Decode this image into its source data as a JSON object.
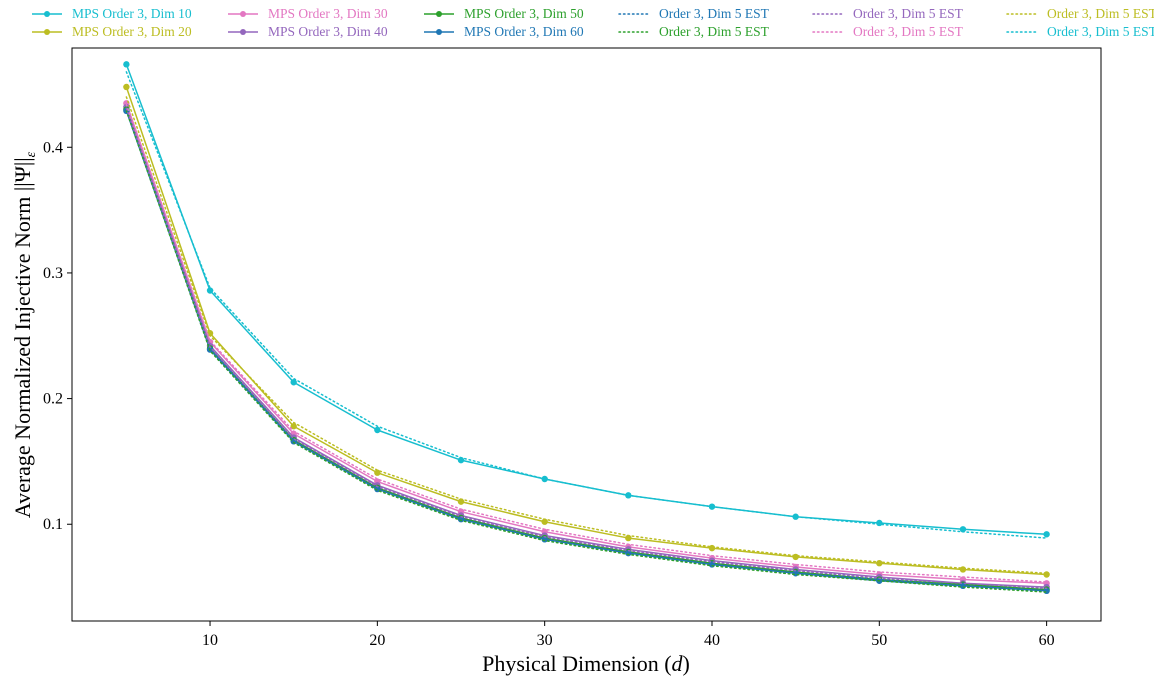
{
  "chart_data": {
    "type": "line",
    "xlabel_parts": [
      "Physical Dimension (",
      "d",
      ")"
    ],
    "ylabel": "Average Normalized Injective Norm ||Ψ||",
    "ylabel_sub": "ε",
    "x": [
      5,
      10,
      15,
      20,
      25,
      30,
      35,
      40,
      45,
      50,
      55,
      60
    ],
    "xlim": [
      1.75,
      63.25
    ],
    "ylim": [
      0.023,
      0.479
    ],
    "xticks": [
      10,
      20,
      30,
      40,
      50,
      60
    ],
    "yticks": [
      0.1,
      0.2,
      0.3,
      0.4
    ],
    "ytick_labels": [
      "0.1",
      "0.2",
      "0.3",
      "0.4"
    ],
    "grid": false,
    "legend_position": "top",
    "series": [
      {
        "name": "MPS Order 3, Dim 10",
        "color": "#17becf",
        "style": "solid",
        "marker": true,
        "values": [
          0.466,
          0.286,
          0.213,
          0.175,
          0.151,
          0.136,
          0.123,
          0.114,
          0.106,
          0.101,
          0.096,
          0.092
        ]
      },
      {
        "name": "MPS Order 3, Dim 20",
        "color": "#bcbd22",
        "style": "solid",
        "marker": true,
        "values": [
          0.448,
          0.252,
          0.178,
          0.141,
          0.118,
          0.102,
          0.089,
          0.081,
          0.074,
          0.069,
          0.064,
          0.06
        ]
      },
      {
        "name": "MPS Order 3, Dim 30",
        "color": "#e377c2",
        "style": "solid",
        "marker": true,
        "values": [
          0.435,
          0.245,
          0.172,
          0.134,
          0.11,
          0.094,
          0.082,
          0.073,
          0.066,
          0.06,
          0.056,
          0.053
        ]
      },
      {
        "name": "MPS Order 3, Dim 40",
        "color": "#9467bd",
        "style": "solid",
        "marker": true,
        "values": [
          0.432,
          0.242,
          0.169,
          0.131,
          0.107,
          0.091,
          0.08,
          0.071,
          0.064,
          0.058,
          0.053,
          0.05
        ]
      },
      {
        "name": "MPS Order 3, Dim 50",
        "color": "#2ca02c",
        "style": "solid",
        "marker": true,
        "values": [
          0.43,
          0.24,
          0.167,
          0.129,
          0.105,
          0.089,
          0.078,
          0.069,
          0.062,
          0.056,
          0.052,
          0.048
        ]
      },
      {
        "name": "MPS Order 3, Dim 60",
        "color": "#1f77b4",
        "style": "solid",
        "marker": true,
        "values": [
          0.429,
          0.239,
          0.166,
          0.128,
          0.104,
          0.088,
          0.077,
          0.068,
          0.061,
          0.055,
          0.051,
          0.047
        ]
      },
      {
        "name": "Order 3, Dim 5 EST",
        "color": "#1f77b4",
        "style": "dotted",
        "marker": false,
        "values": [
          0.43,
          0.24,
          0.166,
          0.128,
          0.104,
          0.088,
          0.077,
          0.068,
          0.061,
          0.056,
          0.051,
          0.047
        ]
      },
      {
        "name": "Order 3, Dim 5 EST",
        "color": "#2ca02c",
        "style": "dotted",
        "marker": false,
        "values": [
          0.429,
          0.238,
          0.165,
          0.127,
          0.103,
          0.087,
          0.076,
          0.067,
          0.06,
          0.055,
          0.05,
          0.046
        ]
      },
      {
        "name": "Order 3, Dim 5 EST",
        "color": "#9467bd",
        "style": "dotted",
        "marker": false,
        "values": [
          0.431,
          0.241,
          0.168,
          0.13,
          0.106,
          0.09,
          0.079,
          0.07,
          0.063,
          0.057,
          0.053,
          0.049
        ]
      },
      {
        "name": "Order 3, Dim 5 EST",
        "color": "#e377c2",
        "style": "dotted",
        "marker": false,
        "values": [
          0.434,
          0.246,
          0.174,
          0.136,
          0.112,
          0.096,
          0.084,
          0.075,
          0.068,
          0.062,
          0.058,
          0.054
        ]
      },
      {
        "name": "Order 3, Dim 5 EST",
        "color": "#bcbd22",
        "style": "dotted",
        "marker": false,
        "values": [
          0.44,
          0.25,
          0.181,
          0.143,
          0.12,
          0.104,
          0.091,
          0.082,
          0.075,
          0.07,
          0.065,
          0.061
        ]
      },
      {
        "name": "Order 3, Dim 5 EST",
        "color": "#17becf",
        "style": "dotted",
        "marker": false,
        "values": [
          0.46,
          0.288,
          0.216,
          0.178,
          0.153,
          0.136,
          0.123,
          0.114,
          0.106,
          0.1,
          0.094,
          0.089
        ]
      }
    ]
  }
}
